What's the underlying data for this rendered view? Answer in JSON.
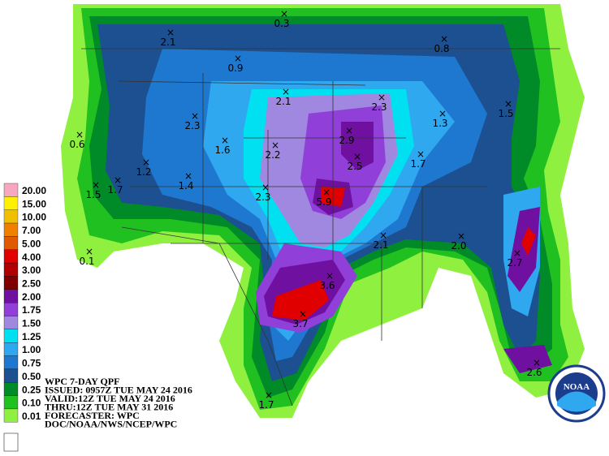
{
  "legend": {
    "levels": [
      {
        "label": "20.00",
        "color": "#f7a8c0"
      },
      {
        "label": "15.00",
        "color": "#fff000"
      },
      {
        "label": "10.00",
        "color": "#f0c000"
      },
      {
        "label": "7.00",
        "color": "#f08000"
      },
      {
        "label": "5.00",
        "color": "#e05a00"
      },
      {
        "label": "4.00",
        "color": "#e00000"
      },
      {
        "label": "3.00",
        "color": "#b00000"
      },
      {
        "label": "2.50",
        "color": "#800000"
      },
      {
        "label": "2.00",
        "color": "#7010a0"
      },
      {
        "label": "1.75",
        "color": "#9040d8"
      },
      {
        "label": "1.50",
        "color": "#a088e0"
      },
      {
        "label": "1.25",
        "color": "#00e0f0"
      },
      {
        "label": "1.00",
        "color": "#30a8f0"
      },
      {
        "label": "0.75",
        "color": "#1e78d0"
      },
      {
        "label": "0.50",
        "color": "#1c5090"
      },
      {
        "label": "0.25",
        "color": "#008a28"
      },
      {
        "label": "0.10",
        "color": "#20c020"
      },
      {
        "label": "0.01",
        "color": "#90f040"
      }
    ]
  },
  "maxima": [
    "0.3",
    "2.1",
    "0.9",
    "0.8",
    "2.1",
    "2.3",
    "1.3",
    "1.5",
    "0.6",
    "2.3",
    "1.6",
    "2.2",
    "2.9",
    "2.5",
    "1.7",
    "1.2",
    "1.7",
    "1.5",
    "1.4",
    "2.3",
    "5.9",
    "2.1",
    "2.0",
    "0.1",
    "2.7",
    "3.6",
    "3.7",
    "2.6",
    "1.7"
  ],
  "info": {
    "lines": [
      "WPC 7-DAY QPF",
      "ISSUED: 0957Z TUE MAY 24 2016",
      "VALID:12Z TUE MAY 24 2016",
      "THRU:12Z TUE MAY 31 2016",
      "FORECASTER: WPC",
      "DOC/NOAA/NWS/NCEP/WPC"
    ]
  },
  "logo": {
    "text": "NOAA"
  }
}
